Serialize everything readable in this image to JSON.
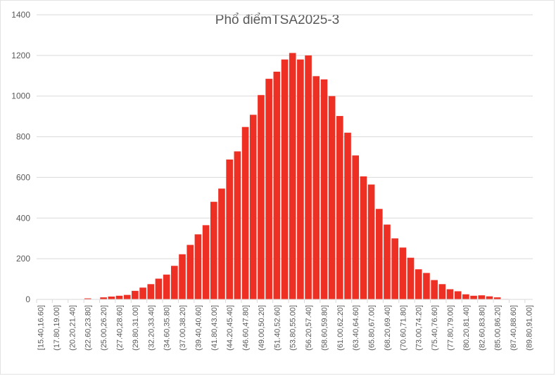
{
  "chart_data": {
    "type": "bar",
    "title": "Phổ điểmTSA2025-3",
    "xlabel": "",
    "ylabel": "",
    "ylim": [
      0,
      1400
    ],
    "yticks": [
      0,
      200,
      400,
      600,
      800,
      1000,
      1200,
      1400
    ],
    "grid": true,
    "legend": "none",
    "bar_color": "#ee2f24",
    "categories": [
      "[15.40,16.60]",
      "(16.60,17.80]",
      "(17.80,19.00]",
      "(19.00,20.20]",
      "(20.20,21.40]",
      "(21.40,22.60]",
      "(22.60,23.80]",
      "(23.80,25.00]",
      "(25.00,26.20]",
      "(26.20,27.40]",
      "(27.40,28.60]",
      "(28.60,29.80]",
      "(29.80,31.00]",
      "(31.00,32.20]",
      "(32.20,33.40]",
      "(33.40,34.60]",
      "(34.60,35.80]",
      "(35.80,37.00]",
      "(37.00,38.20]",
      "(38.20,39.40]",
      "(39.40,40.60]",
      "(40.60,41.80]",
      "(41.80,43.00]",
      "(43.00,44.20]",
      "(44.20,45.40]",
      "(45.40,46.60]",
      "(46.60,47.80]",
      "(47.80,49.00]",
      "(49.00,50.20]",
      "(50.20,51.40]",
      "(51.40,52.60]",
      "(52.60,53.80]",
      "(53.80,55.00]",
      "(55.00,56.20]",
      "(56.20,57.40]",
      "(57.40,58.60]",
      "(58.60,59.80]",
      "(59.80,61.00]",
      "(61.00,62.20]",
      "(62.20,63.40]",
      "(63.40,64.60]",
      "(64.60,65.80]",
      "(65.80,67.00]",
      "(67.00,68.20]",
      "(68.20,69.40]",
      "(69.40,70.60]",
      "(70.60,71.80]",
      "(71.80,73.00]",
      "(73.00,74.20]",
      "(74.20,75.40]",
      "(75.40,76.60]",
      "(76.60,77.80]",
      "(77.80,79.00]",
      "(79.00,80.20]",
      "(80.20,81.40]",
      "(81.40,82.60]",
      "(82.60,83.80]",
      "(83.80,85.00]",
      "(85.00,86.20]",
      "(86.20,87.40]",
      "(87.40,88.60]",
      "(88.60,89.80]",
      "(89.80,91.00]"
    ],
    "visible_tick_labels": [
      "[15.40,16.60]",
      "(17.80,19.00]",
      "(20.20,21.40]",
      "(22.60,23.80]",
      "(25.00,26.20]",
      "(27.40,28.60]",
      "(29.80,31.00]",
      "(32.20,33.40]",
      "(34.60,35.80]",
      "(37.00,38.20]",
      "(39.40,40.60]",
      "(41.80,43.00]",
      "(44.20,45.40]",
      "(46.60,47.80]",
      "(49.00,50.20]",
      "(51.40,52.60]",
      "(53.80,55.00]",
      "(56.20,57.40]",
      "(58.60,59.80]",
      "(61.00,62.20]",
      "(63.40,64.60]",
      "(65.80,67.00]",
      "(68.20,69.40]",
      "(70.60,71.80]",
      "(73.00,74.20]",
      "(75.40,76.60]",
      "(77.80,79.00]",
      "(80.20,81.40]",
      "(82.60,83.80]",
      "(85.00,86.20]",
      "(87.40,88.60]",
      "(89.80,91.00]"
    ],
    "values": [
      1,
      0,
      0,
      0,
      0,
      0,
      5,
      0,
      10,
      14,
      18,
      22,
      42,
      58,
      75,
      102,
      122,
      165,
      222,
      268,
      320,
      365,
      480,
      545,
      688,
      728,
      848,
      908,
      1005,
      1085,
      1120,
      1180,
      1212,
      1180,
      1200,
      1098,
      1082,
      1000,
      902,
      820,
      708,
      605,
      565,
      445,
      368,
      300,
      255,
      205,
      148,
      130,
      95,
      75,
      50,
      40,
      25,
      18,
      20,
      15,
      10,
      2,
      1,
      0,
      0
    ]
  }
}
